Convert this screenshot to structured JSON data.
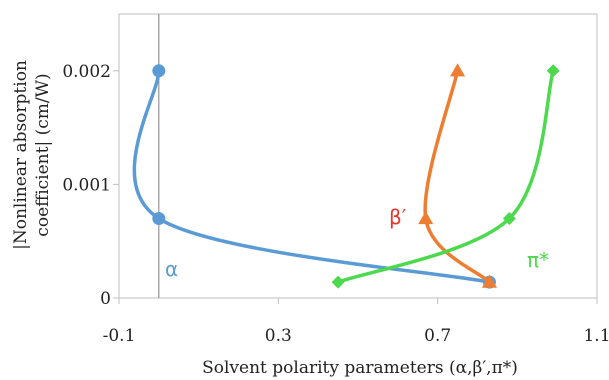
{
  "chart_data": {
    "type": "line",
    "xlabel": "Solvent polarity parameters (α,β′,π*)",
    "ylabel_line1": "|Nonlinear absorption",
    "ylabel_line2": "coefficient| (cm/W)",
    "xlim": [
      -0.1,
      1.1
    ],
    "ylim": [
      0,
      0.0025
    ],
    "x_ticks": [
      -0.1,
      0.3,
      0.7,
      1.1
    ],
    "x_tick_labels": [
      "-0.1",
      "0.3",
      "0.7",
      "1.1"
    ],
    "y_ticks": [
      0,
      0.001,
      0.002
    ],
    "y_tick_labels": [
      "0",
      "0.001",
      "0.002"
    ],
    "reference_line_x": 0.0,
    "grid": false,
    "series": [
      {
        "name": "α",
        "color": "#5b9bd5",
        "marker": "circle",
        "points": [
          {
            "x": 0.0,
            "y": 0.002
          },
          {
            "x": 0.0,
            "y": 0.0007
          },
          {
            "x": 0.83,
            "y": 0.00014
          }
        ]
      },
      {
        "name": "β′",
        "color": "#ed7d31",
        "label_color": "#e8352a",
        "marker": "triangle",
        "points": [
          {
            "x": 0.83,
            "y": 0.00014
          },
          {
            "x": 0.67,
            "y": 0.0007
          },
          {
            "x": 0.75,
            "y": 0.002
          }
        ]
      },
      {
        "name": "π*",
        "color": "#4dd94d",
        "marker": "diamond",
        "points": [
          {
            "x": 0.45,
            "y": 0.00014
          },
          {
            "x": 0.88,
            "y": 0.0007
          },
          {
            "x": 0.99,
            "y": 0.002
          }
        ]
      }
    ]
  }
}
